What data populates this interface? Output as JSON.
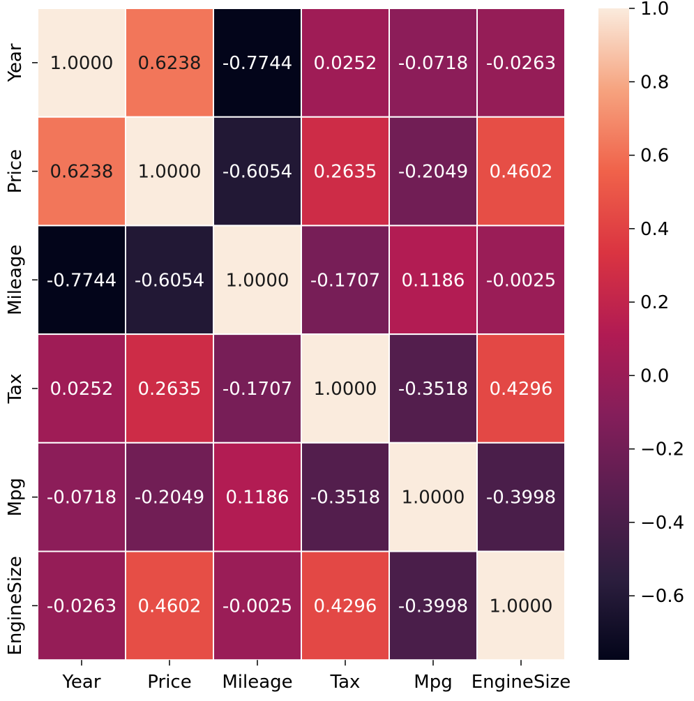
{
  "chart_data": {
    "type": "heatmap",
    "title": "",
    "xlabel": "",
    "ylabel": "",
    "x_categories": [
      "Year",
      "Price",
      "Mileage",
      "Tax",
      "Mpg",
      "EngineSize"
    ],
    "y_categories": [
      "Year",
      "Price",
      "Mileage",
      "Tax",
      "Mpg",
      "EngineSize"
    ],
    "values": [
      [
        1.0,
        0.6238,
        -0.7744,
        0.0252,
        -0.0718,
        -0.0263
      ],
      [
        0.6238,
        1.0,
        -0.6054,
        0.2635,
        -0.2049,
        0.4602
      ],
      [
        -0.7744,
        -0.6054,
        1.0,
        -0.1707,
        0.1186,
        -0.0025
      ],
      [
        0.0252,
        0.2635,
        -0.1707,
        1.0,
        -0.3518,
        0.4296
      ],
      [
        -0.0718,
        -0.2049,
        0.1186,
        -0.3518,
        1.0,
        -0.3998
      ],
      [
        -0.0263,
        0.4602,
        -0.0025,
        0.4296,
        -0.3998,
        1.0
      ]
    ],
    "value_format": "4 decimals",
    "colormap": "rocket",
    "value_range": [
      -0.7744,
      1.0
    ],
    "colorbar": {
      "placement": "right",
      "ticks": [
        1.0,
        0.8,
        0.6,
        0.4,
        0.2,
        0.0,
        -0.2,
        -0.4,
        -0.6
      ],
      "tick_labels": [
        "1.0",
        "0.8",
        "0.6",
        "0.4",
        "0.2",
        "0.0",
        "−0.2",
        "−0.4",
        "−0.6"
      ]
    }
  }
}
